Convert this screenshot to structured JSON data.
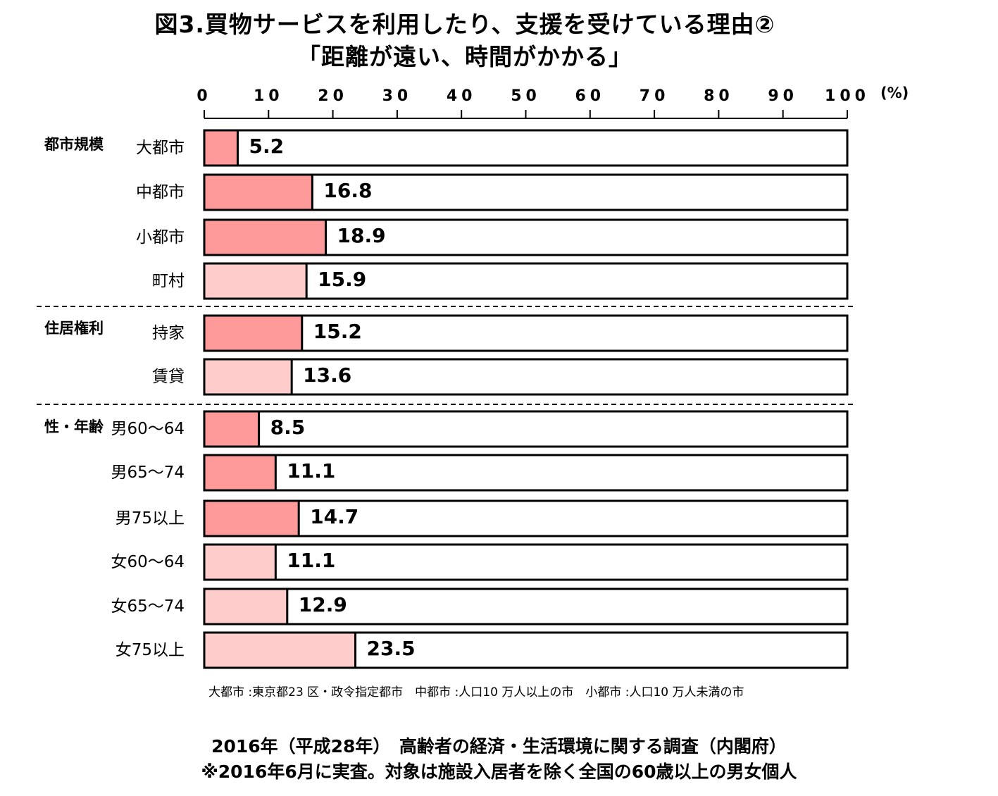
{
  "title_line1": "図3.買物サービスを利用したり、支援を受けている理由②",
  "title_line2": "「距離が遠い、時間がかかる」",
  "note": "大都市 :東京都23 区・政令指定都市　中都市 :人口10 万人以上の市　小都市 :人口10 万人未満の市",
  "source_line1": "2016年（平成28年）　高齢者の経済・生活環境に関する調査（内閣府）",
  "source_line2": "※2016年6月に実査。対象は施設入居者を除く全国の60歳以上の男女個人",
  "colors": {
    "dark_bar": "#fe9a9a",
    "light_bar": "#ffcccc",
    "border": "#000000"
  },
  "chart_data": {
    "type": "bar",
    "orientation": "horizontal",
    "unit": "(%)",
    "xlim": [
      0,
      100
    ],
    "xticks": [
      "0",
      "10",
      "20",
      "30",
      "40",
      "50",
      "60",
      "70",
      "80",
      "90",
      "100"
    ],
    "groups": [
      {
        "name": "都市規模",
        "rows": [
          {
            "label": "大都市",
            "value": 5.2,
            "shade": "dark"
          },
          {
            "label": "中都市",
            "value": 16.8,
            "shade": "dark"
          },
          {
            "label": "小都市",
            "value": 18.9,
            "shade": "dark"
          },
          {
            "label": "町村",
            "value": 15.9,
            "shade": "light"
          }
        ]
      },
      {
        "name": "住居権利",
        "rows": [
          {
            "label": "持家",
            "value": 15.2,
            "shade": "dark"
          },
          {
            "label": "賃貸",
            "value": 13.6,
            "shade": "light"
          }
        ]
      },
      {
        "name": "性・年齢",
        "rows": [
          {
            "label": "男60～64",
            "value": 8.5,
            "shade": "dark"
          },
          {
            "label": "男65～74",
            "value": 11.1,
            "shade": "dark"
          },
          {
            "label": "男75以上",
            "value": 14.7,
            "shade": "dark"
          },
          {
            "label": "女60～64",
            "value": 11.1,
            "shade": "light"
          },
          {
            "label": "女65～74",
            "value": 12.9,
            "shade": "light"
          },
          {
            "label": "女75以上",
            "value": 23.5,
            "shade": "light"
          }
        ]
      }
    ]
  }
}
